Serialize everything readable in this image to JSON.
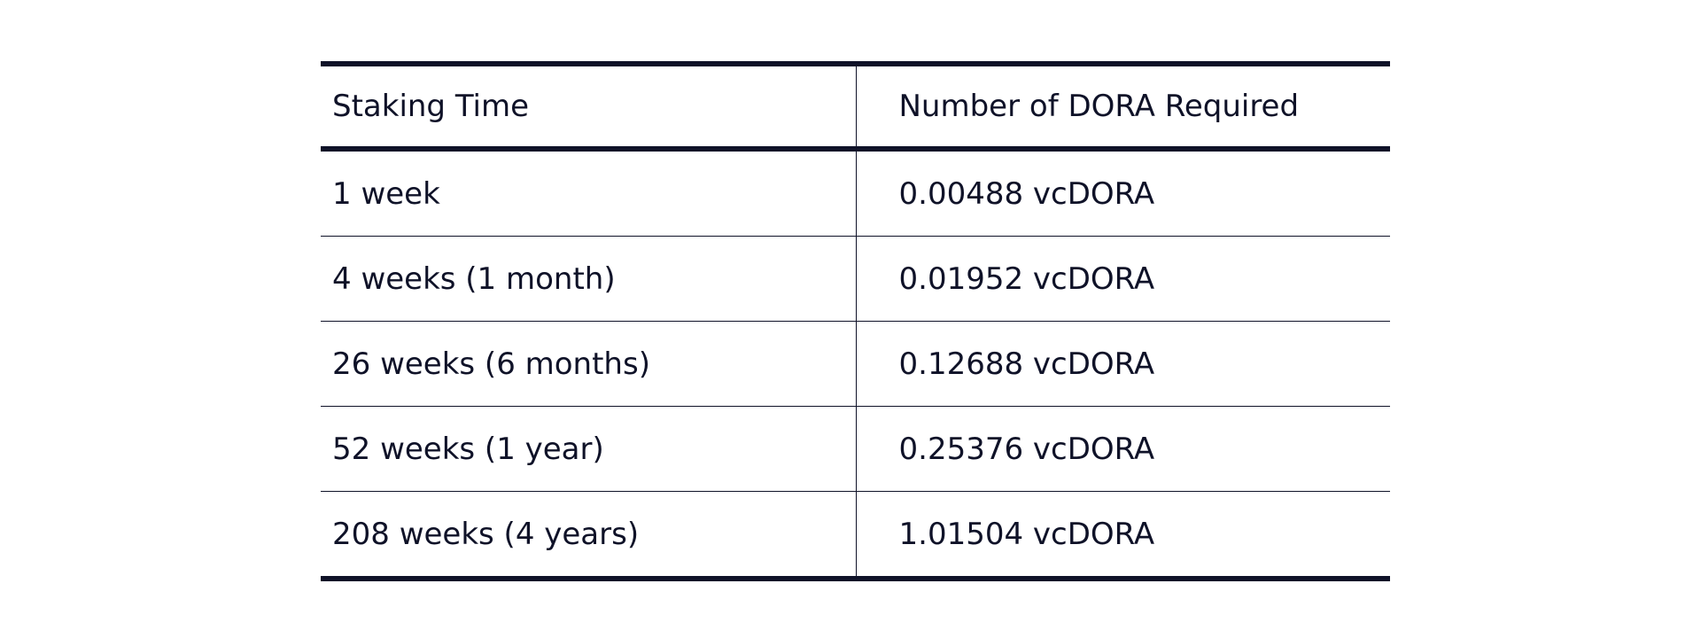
{
  "table": {
    "headers": {
      "staking_time": "Staking Time",
      "dora_required": "Number of DORA Required"
    },
    "rows": [
      {
        "staking_time": "1 week",
        "dora_required": "0.00488 vcDORA"
      },
      {
        "staking_time": "4 weeks (1 month)",
        "dora_required": "0.01952 vcDORA"
      },
      {
        "staking_time": "26 weeks (6 months)",
        "dora_required": "0.12688 vcDORA"
      },
      {
        "staking_time": "52 weeks (1 year)",
        "dora_required": "0.25376 vcDORA"
      },
      {
        "staking_time": "208 weeks (4 years)",
        "dora_required": "1.01504 vcDORA"
      }
    ]
  },
  "colors": {
    "text": "#0f1228",
    "rule": "#0f1228",
    "background": "#ffffff"
  }
}
